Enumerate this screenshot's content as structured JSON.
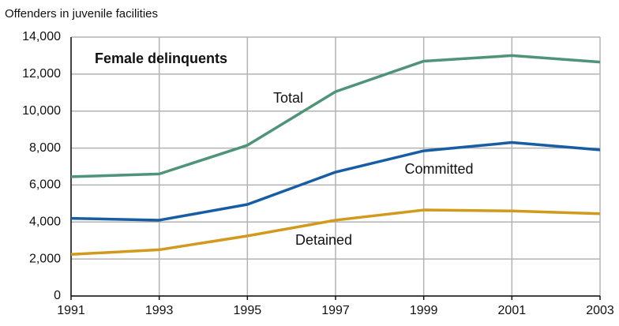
{
  "chart_data": {
    "type": "line",
    "title": "Female delinquents",
    "y_label": "Offenders in juvenile facilities",
    "x": [
      1991,
      1993,
      1995,
      1997,
      1999,
      2001,
      2003
    ],
    "xlim": [
      1991,
      2003
    ],
    "xticks": [
      1991,
      1993,
      1995,
      1997,
      1999,
      2001,
      2003
    ],
    "ylim": [
      0,
      14000
    ],
    "yticks": [
      0,
      {
        "value": 2000,
        "label": "2,000"
      },
      {
        "value": 4000,
        "label": "4,000"
      },
      {
        "value": 6000,
        "label": "6,000"
      },
      {
        "value": 8000,
        "label": "8,000"
      },
      {
        "value": 10000,
        "label": "10,000"
      },
      {
        "value": 12000,
        "label": "12,000"
      },
      {
        "value": 14000,
        "label": "14,000"
      }
    ],
    "grid": true,
    "series": [
      {
        "name": "Total",
        "color": "#4f9479",
        "values": [
          6450,
          6600,
          8150,
          11050,
          12700,
          13000,
          12650
        ]
      },
      {
        "name": "Committed",
        "color": "#165da3",
        "values": [
          4200,
          4100,
          4950,
          6700,
          7850,
          8300,
          7900
        ]
      },
      {
        "name": "Detained",
        "color": "#d19a1c",
        "values": [
          2250,
          2500,
          3250,
          4100,
          4650,
          4600,
          4450
        ]
      }
    ]
  }
}
